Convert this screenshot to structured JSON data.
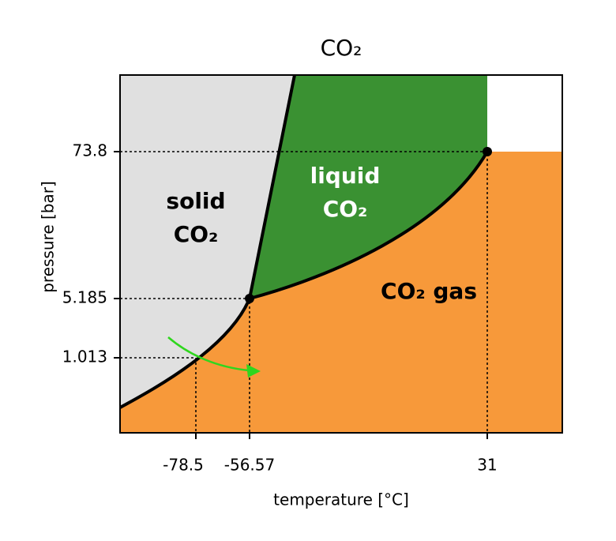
{
  "title": "CO₂",
  "x_axis": {
    "label": "temperature [°C]",
    "ticks": [
      "-78.5",
      "-56.57",
      "31"
    ]
  },
  "y_axis": {
    "label": "pressure [bar]",
    "ticks": [
      "73.8",
      "5.185",
      "1.013"
    ]
  },
  "regions": [
    {
      "lines": [
        "solid",
        "CO₂"
      ]
    },
    {
      "lines": [
        "liquid",
        "CO₂"
      ]
    },
    {
      "lines": [
        "CO₂ gas"
      ]
    }
  ]
}
